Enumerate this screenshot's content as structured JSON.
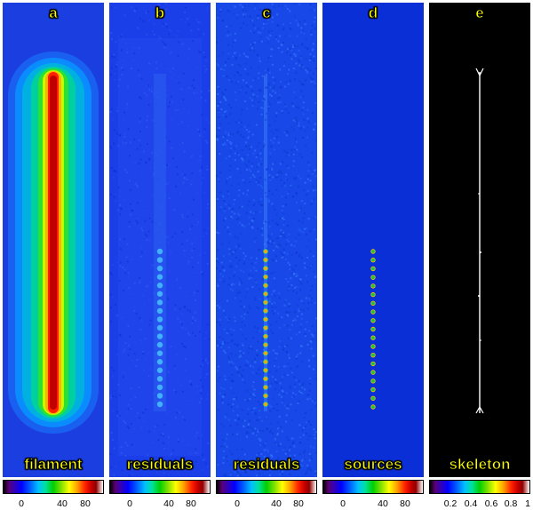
{
  "panels": [
    {
      "letter": "a",
      "caption": "filament"
    },
    {
      "letter": "b",
      "caption": "residuals"
    },
    {
      "letter": "c",
      "caption": "residuals"
    },
    {
      "letter": "d",
      "caption": "sources"
    },
    {
      "letter": "e",
      "caption": "skeleton"
    }
  ],
  "colorbars": [
    {
      "ticks": [
        "0",
        "40",
        "80"
      ]
    },
    {
      "ticks": [
        "0",
        "40",
        "80"
      ]
    },
    {
      "ticks": [
        "0",
        "40",
        "80"
      ]
    },
    {
      "ticks": [
        "0",
        "40",
        "80"
      ]
    },
    {
      "ticks": [
        "0.2",
        "0.4",
        "0.6",
        "0.8",
        "1"
      ]
    }
  ],
  "colors": {
    "label_text": "#ffff00",
    "background_blue": "#0a2fd6",
    "skeleton_bg": "#000000"
  }
}
